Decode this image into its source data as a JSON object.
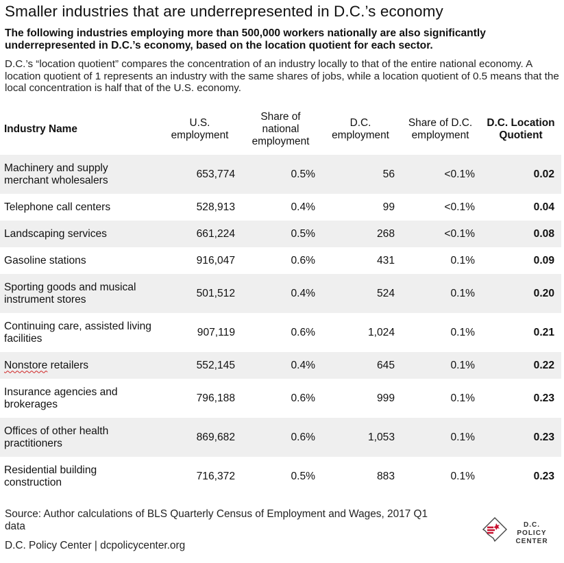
{
  "title": "Smaller industries that are underrepresented in D.C.’s economy",
  "subtitle": "The following industries employing more than 500,000 workers nationally are also significantly underrepresented in D.C.’s economy, based on the location quotient for each sector.",
  "description": "D.C.’s “location quotient” compares the concentration of an industry locally to that of the entire national economy. A location quotient of 1 represents an industry with the same shares of jobs, while a location quotient of 0.5 means that the local concentration is half that of the U.S. economy.",
  "table": {
    "headers": {
      "industry": "Industry Name",
      "us_emp": "U.S. employment",
      "share_nat": "Share of national employment",
      "dc_emp": "D.C. employment",
      "share_dc": "Share of D.C. employment",
      "lq": "D.C. Location Quotient"
    },
    "rows": [
      {
        "industry": "Machinery and supply merchant wholesalers",
        "us_emp": "653,774",
        "share_nat": "0.5%",
        "dc_emp": "56",
        "share_dc": "<0.1%",
        "lq": "0.02"
      },
      {
        "industry": "Telephone call centers",
        "us_emp": "528,913",
        "share_nat": "0.4%",
        "dc_emp": "99",
        "share_dc": "<0.1%",
        "lq": "0.04"
      },
      {
        "industry": "Landscaping services",
        "us_emp": "661,224",
        "share_nat": "0.5%",
        "dc_emp": "268",
        "share_dc": "<0.1%",
        "lq": "0.08"
      },
      {
        "industry": "Gasoline stations",
        "us_emp": "916,047",
        "share_nat": "0.6%",
        "dc_emp": "431",
        "share_dc": "0.1%",
        "lq": "0.09"
      },
      {
        "industry": "Sporting goods and musical instrument stores",
        "us_emp": "501,512",
        "share_nat": "0.4%",
        "dc_emp": "524",
        "share_dc": "0.1%",
        "lq": "0.20"
      },
      {
        "industry": "Continuing care, assisted living facilities",
        "us_emp": "907,119",
        "share_nat": "0.6%",
        "dc_emp": "1,024",
        "share_dc": "0.1%",
        "lq": "0.21"
      },
      {
        "industry_first": "Nonstore",
        "industry_rest": " retailers",
        "us_emp": "552,145",
        "share_nat": "0.4%",
        "dc_emp": "645",
        "share_dc": "0.1%",
        "lq": "0.22"
      },
      {
        "industry": "Insurance agencies and brokerages",
        "us_emp": "796,188",
        "share_nat": "0.6%",
        "dc_emp": "999",
        "share_dc": "0.1%",
        "lq": "0.23"
      },
      {
        "industry": "Offices of other health practitioners",
        "us_emp": "869,682",
        "share_nat": "0.6%",
        "dc_emp": "1,053",
        "share_dc": "0.1%",
        "lq": "0.23"
      },
      {
        "industry": "Residential building construction",
        "us_emp": "716,372",
        "share_nat": "0.5%",
        "dc_emp": "883",
        "share_dc": "0.1%",
        "lq": "0.23"
      }
    ]
  },
  "source": "Source: Author calculations of BLS Quarterly Census of Employment and Wages, 2017 Q1 data",
  "footer": "D.C. Policy Center  |  dcpolicycenter.org",
  "logo": {
    "line1": "D.C. POLICY",
    "line2": "CENTER",
    "icon": "dc-map-icon"
  },
  "colors": {
    "row_shade": "#efefef",
    "logo_red": "#c8102e"
  }
}
